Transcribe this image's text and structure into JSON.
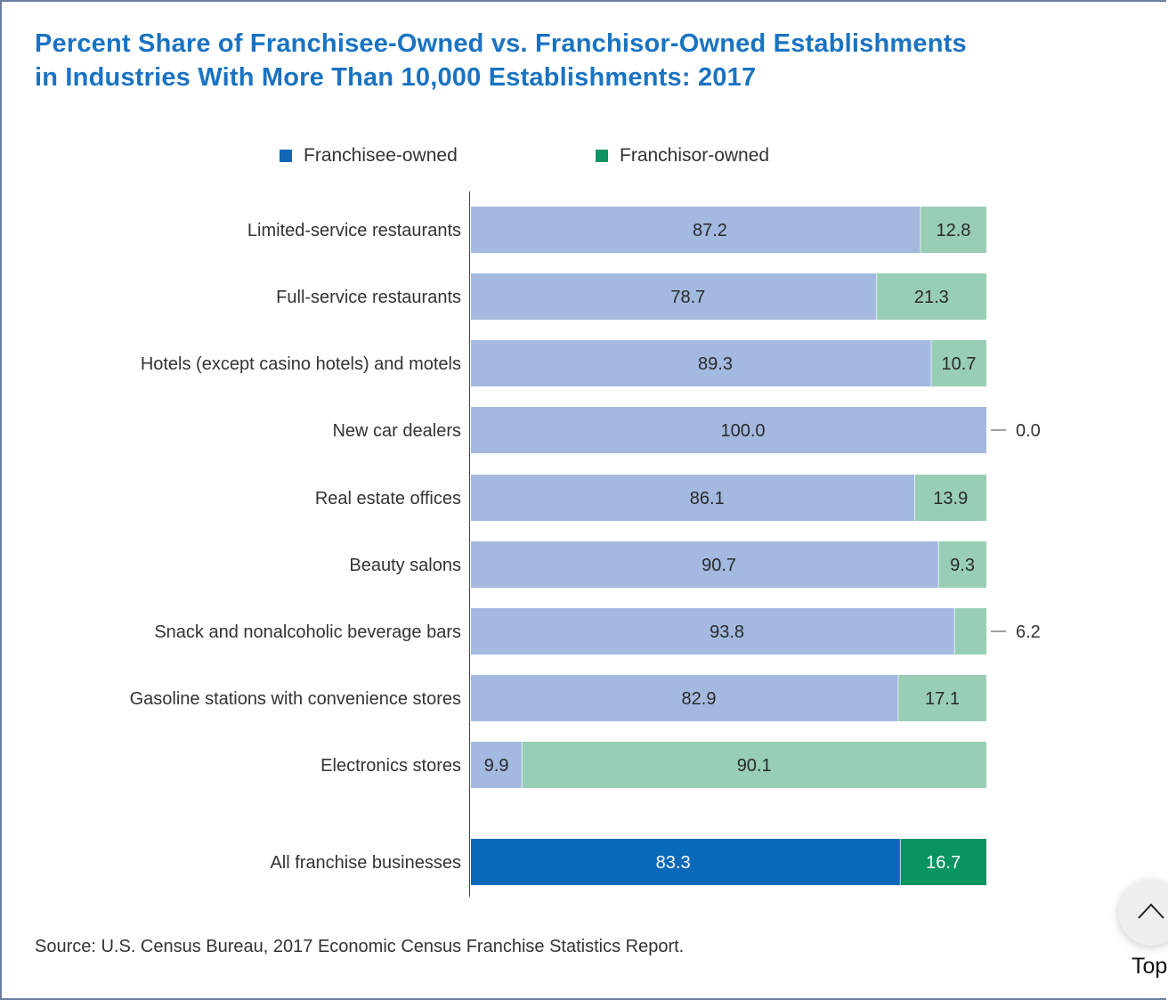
{
  "chart_data": {
    "type": "bar",
    "orientation": "horizontal",
    "stacked": true,
    "title": "Percent Share of Franchisee-Owned vs. Franchisor-Owned Establishments in Industries With More Than 10,000 Establishments: 2017",
    "title_lines": [
      "Percent Share of Franchisee-Owned vs. Franchisor-Owned Establishments",
      "in Industries With More Than 10,000 Establishments: 2017"
    ],
    "xlabel": "",
    "ylabel": "",
    "xlim": [
      0,
      100
    ],
    "grid": false,
    "legend_position": "top",
    "categories": [
      "Limited-service restaurants",
      "Full-service restaurants",
      "Hotels (except casino hotels) and motels",
      "New car dealers",
      "Real estate offices",
      "Beauty salons",
      "Snack and nonalcoholic beverage bars",
      "Gasoline stations with convenience stores",
      "Electronics stores",
      "All franchise businesses"
    ],
    "series": [
      {
        "name": "Franchisee-owned",
        "values": [
          87.2,
          78.7,
          89.3,
          100.0,
          86.1,
          90.7,
          93.8,
          82.9,
          9.9,
          83.3
        ],
        "labels": [
          "87.2",
          "78.7",
          "89.3",
          "100.0",
          "86.1",
          "90.7",
          "93.8",
          "82.9",
          "9.9",
          "83.3"
        ]
      },
      {
        "name": "Franchisor-owned",
        "values": [
          12.8,
          21.3,
          10.7,
          0.0,
          13.9,
          9.3,
          6.2,
          17.1,
          90.1,
          16.7
        ],
        "labels": [
          "12.8",
          "21.3",
          "10.7",
          "0.0",
          "13.9",
          "9.3",
          "6.2",
          "17.1",
          "90.1",
          "16.7"
        ]
      }
    ],
    "highlight_category": "All franchise businesses",
    "colors": {
      "franchisee_light": "#a3b9e0",
      "franchisor_light": "#98ceb5",
      "franchisee_dark": "#0a68b8",
      "franchisor_dark": "#0a9460",
      "legend_franchisee": "#1268b6",
      "legend_franchisor": "#129462"
    },
    "source": "Source: U.S. Census Bureau, 2017 Economic Census Franchise Statistics Report."
  },
  "ui": {
    "scroll_top_label": "Top",
    "scroll_top_icon": "chevron-up-icon"
  }
}
